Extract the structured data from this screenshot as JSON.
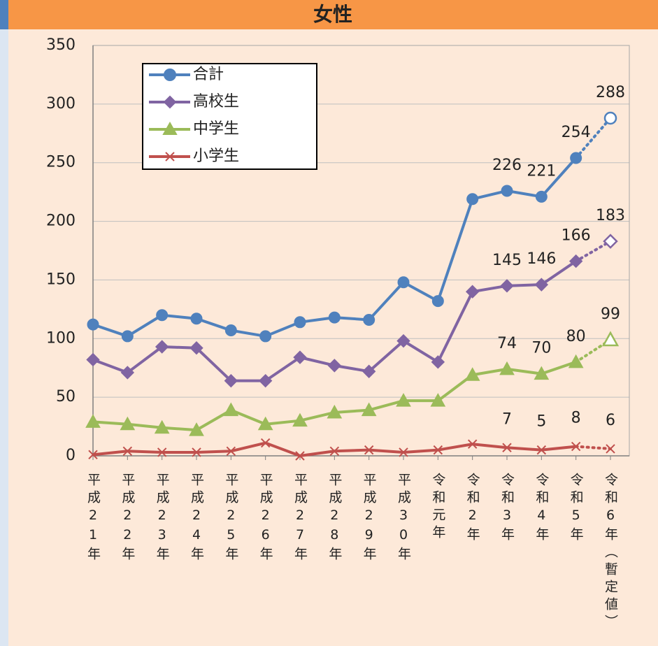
{
  "chart_data": {
    "type": "line",
    "title": "女性",
    "categories": [
      "平成21年",
      "平成22年",
      "平成23年",
      "平成24年",
      "平成25年",
      "平成26年",
      "平成27年",
      "平成28年",
      "平成29年",
      "平成30年",
      "令和元年",
      "令和2年",
      "令和3年",
      "令和4年",
      "令和5年",
      "令和6年（暫定値）"
    ],
    "series": [
      {
        "name": "合計",
        "color": "#4f81bd",
        "marker": "circle",
        "values": [
          112,
          102,
          120,
          117,
          107,
          102,
          114,
          118,
          116,
          148,
          132,
          219,
          226,
          221,
          254,
          288
        ]
      },
      {
        "name": "高校生",
        "color": "#8064a2",
        "marker": "diamond",
        "values": [
          82,
          71,
          93,
          92,
          64,
          64,
          84,
          77,
          72,
          98,
          80,
          140,
          145,
          146,
          166,
          183
        ]
      },
      {
        "name": "中学生",
        "color": "#9bbb59",
        "marker": "triangle",
        "values": [
          29,
          27,
          24,
          22,
          39,
          27,
          30,
          37,
          39,
          47,
          47,
          69,
          74,
          70,
          80,
          99
        ]
      },
      {
        "name": "小学生",
        "color": "#c0504d",
        "marker": "x",
        "values": [
          1,
          4,
          3,
          3,
          4,
          11,
          0,
          4,
          5,
          3,
          5,
          10,
          7,
          5,
          8,
          6
        ]
      }
    ],
    "labeled_points": [
      12,
      13,
      14,
      15
    ],
    "provisional_point": 15,
    "ylim": [
      0,
      350
    ],
    "yticks": [
      0,
      50,
      100,
      150,
      200,
      250,
      300,
      350
    ],
    "grid": true,
    "legend": "upper left"
  }
}
